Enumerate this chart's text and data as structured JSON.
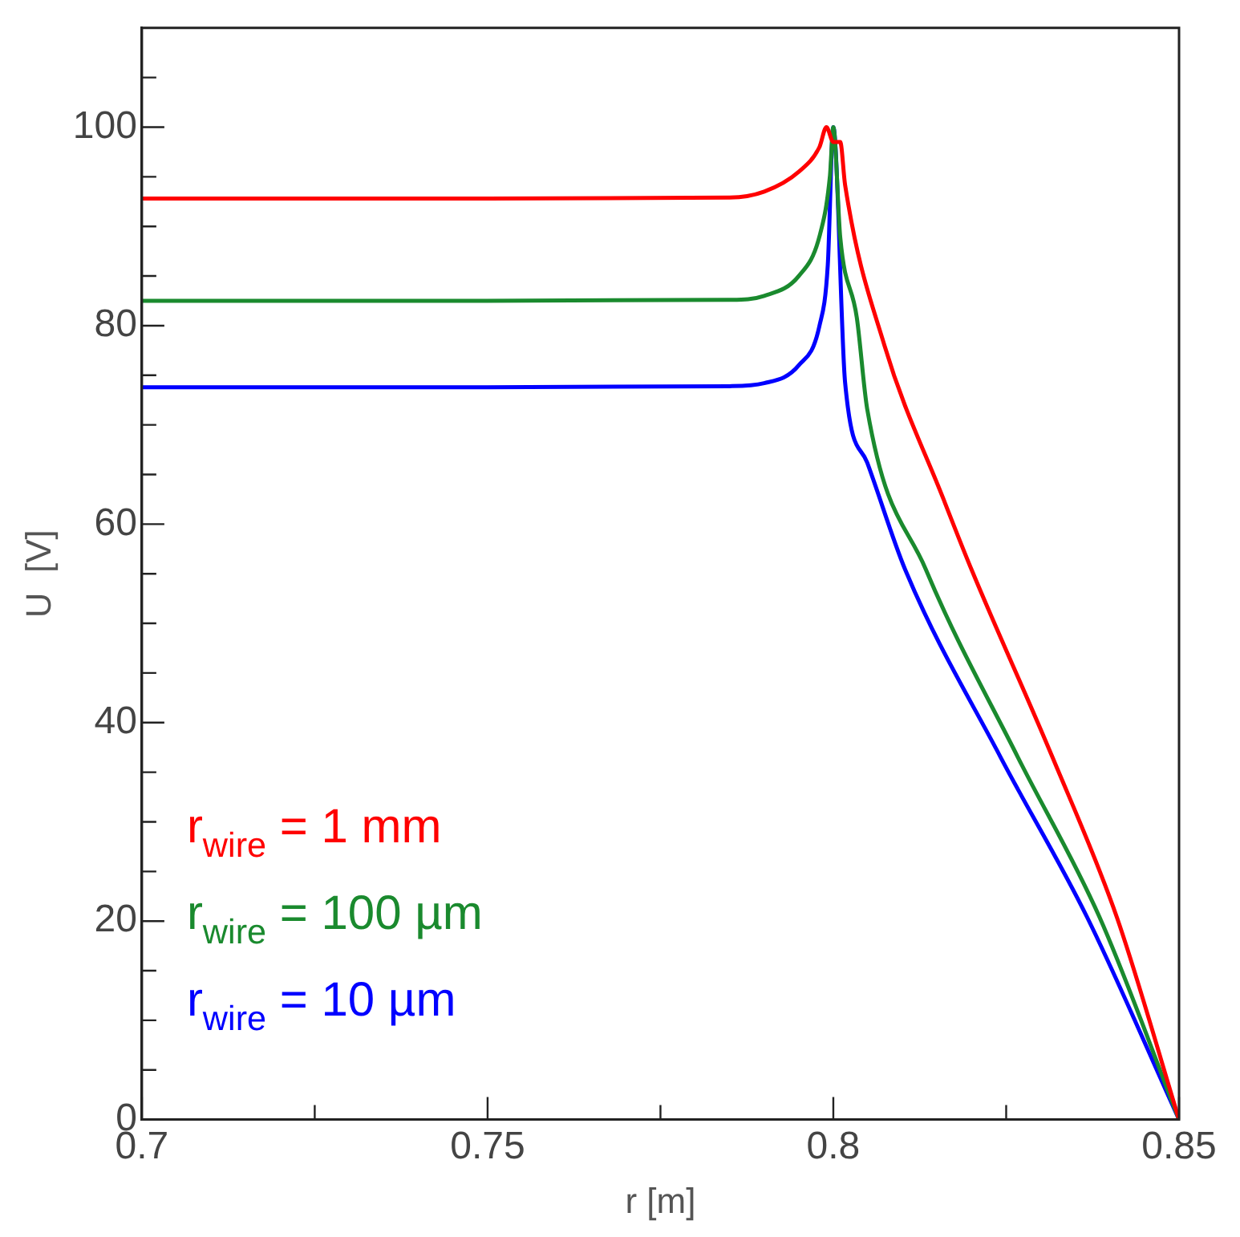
{
  "chart_data": {
    "type": "line",
    "xlabel": "r [m]",
    "ylabel": "U  [V]",
    "xlim": [
      0.7,
      0.85
    ],
    "xticks": [
      0.7,
      {
        "value": 0.725,
        "label": null
      },
      0.75,
      {
        "value": 0.775,
        "label": null
      },
      0.8,
      {
        "value": 0.825,
        "label": null
      },
      0.85
    ],
    "ylim": [
      0,
      110
    ],
    "yticks": [
      0,
      {
        "value": 5,
        "label": null
      },
      {
        "value": 10,
        "label": null
      },
      {
        "value": 15,
        "label": null
      },
      20,
      {
        "value": 25,
        "label": null
      },
      {
        "value": 30,
        "label": null
      },
      {
        "value": 35,
        "label": null
      },
      40,
      {
        "value": 45,
        "label": null
      },
      {
        "value": 50,
        "label": null
      },
      {
        "value": 55,
        "label": null
      },
      60,
      {
        "value": 65,
        "label": null
      },
      {
        "value": 70,
        "label": null
      },
      {
        "value": 75,
        "label": null
      },
      80,
      {
        "value": 85,
        "label": null
      },
      {
        "value": 90,
        "label": null
      },
      {
        "value": 95,
        "label": null
      },
      100,
      {
        "value": 105,
        "label": null
      }
    ],
    "grid": false,
    "legend": "bottom left",
    "marker": "none",
    "line_style": "solid",
    "series": [
      {
        "name": "r$_{wire}$ = 1 mm",
        "color": "#ff0000",
        "x": [
          0.7,
          0.75,
          0.785,
          0.79,
          0.795,
          0.798,
          0.799,
          0.8,
          0.801,
          0.8017,
          0.8074,
          0.816,
          0.82,
          0.8317,
          0.841,
          0.85
        ],
        "values": [
          92.8,
          92.8,
          92.9,
          93.5,
          95.5,
          98,
          100,
          98.5,
          98.5,
          94.2,
          78,
          62.4,
          55.4,
          36.5,
          20.4,
          0
        ]
      },
      {
        "name": "r$_{wire}$ = 100 µm",
        "color": "#1a8a2e",
        "x": [
          0.7,
          0.75,
          0.785,
          0.79,
          0.795,
          0.798,
          0.7995,
          0.8,
          0.801,
          0.8034,
          0.8049,
          0.8134,
          0.8267,
          0.8385,
          0.85
        ],
        "values": [
          82.5,
          82.5,
          82.6,
          83,
          85,
          89,
          95,
          100,
          88.9,
          80.8,
          71.6,
          55.4,
          36.5,
          20.4,
          0
        ]
      },
      {
        "name": "r$_{wire}$ = 10 µm",
        "color": "#0000ff",
        "x": [
          0.7,
          0.75,
          0.785,
          0.79,
          0.795,
          0.798,
          0.7992,
          0.8,
          0.8017,
          0.8049,
          0.8104,
          0.8242,
          0.8367,
          0.85
        ],
        "values": [
          73.8,
          73.8,
          73.9,
          74.2,
          76,
          80,
          86.1,
          100,
          74.3,
          66.2,
          55.4,
          36.5,
          20.4,
          0
        ]
      }
    ]
  }
}
